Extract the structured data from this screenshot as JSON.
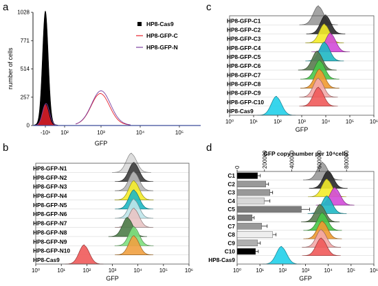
{
  "figure": {
    "panel_a_label": "a",
    "panel_b_label": "b",
    "panel_c_label": "c",
    "panel_d_label": "d"
  },
  "chart_data": [
    {
      "panel": "a",
      "type": "line",
      "xlabel": "GFP",
      "ylabel": "number of cells",
      "x_ticks": [
        "-10¹",
        "10²",
        "10³",
        "10⁴",
        "10⁵"
      ],
      "y_ticks": [
        "0",
        "257",
        "514",
        "771",
        "1028"
      ],
      "ylim": [
        0,
        1028
      ],
      "legend": [
        "HP8-Cas9",
        "HP8-GFP-C",
        "HP8-GFP-N"
      ],
      "legend_position": "top-right",
      "series": [
        {
          "name": "HP8-Cas9",
          "color": "#000000",
          "peak_x": "-10¹",
          "peak_count": 1028
        },
        {
          "name": "HP8-GFP-C",
          "color": "#e8202a",
          "peaks": [
            {
              "at": "-10¹",
              "count": 190
            },
            {
              "at": "10³",
              "count": 260
            }
          ]
        },
        {
          "name": "HP8-GFP-N",
          "color": "#7a3fa0",
          "peaks": [
            {
              "at": "-10¹",
              "count": 200
            },
            {
              "at": "10³",
              "count": 285
            }
          ]
        }
      ]
    },
    {
      "panel": "b",
      "type": "area",
      "xlabel": "GFP",
      "x_ticks": [
        "10⁰",
        "10¹",
        "10²",
        "10³",
        "10⁴",
        "10⁵",
        "10⁶"
      ],
      "xlim_log10": [
        0,
        6
      ],
      "series": [
        {
          "name": "HP8-GFP-N1",
          "color": "#d8d8d8",
          "peak_log10": 3.75
        },
        {
          "name": "HP8-GFP-N2",
          "color": "#3c3c3c",
          "peak_log10": 3.85
        },
        {
          "name": "HP8-GFP-N3",
          "color": "#b8b8b8",
          "peak_log10": 3.85
        },
        {
          "name": "HP8-GFP-N4",
          "color": "#f4ec2a",
          "peak_log10": 3.85
        },
        {
          "name": "HP8-GFP-N5",
          "color": "#1fb8c4",
          "peak_log10": 3.85
        },
        {
          "name": "HP8-GFP-N6",
          "color": "#bfe5ea",
          "peak_log10": 3.85
        },
        {
          "name": "HP8-GFP-N7",
          "color": "#e8c4c4",
          "peak_log10": 3.85
        },
        {
          "name": "HP8-GFP-N8",
          "color": "#4e7d4a",
          "peak_log10": 3.6
        },
        {
          "name": "HP8-GFP-N9",
          "color": "#7ee07e",
          "peak_log10": 3.85
        },
        {
          "name": "HP8-GFP-N10",
          "color": "#f0a040",
          "peak_log10": 3.85
        },
        {
          "name": "HP8-Cas9",
          "color": "#f05a5a",
          "peak_log10": 1.9
        }
      ]
    },
    {
      "panel": "c",
      "type": "area",
      "xlabel": "GFP",
      "x_ticks": [
        "10⁰",
        "10¹",
        "10²",
        "10³",
        "10⁴",
        "10⁵",
        "10⁶"
      ],
      "xlim_log10": [
        0,
        6
      ],
      "series": [
        {
          "name": "HP8-GFP-C1",
          "color": "#9a9a9a",
          "peak_log10": 3.7
        },
        {
          "name": "HP8-GFP-C2",
          "color": "#2a2a2a",
          "peak_log10": 4.0
        },
        {
          "name": "HP8-GFP-C3",
          "color": "#f4ec2a",
          "peak_log10": 3.95
        },
        {
          "name": "HP8-GFP-C4",
          "color": "#d24ad8",
          "peak_log10": 4.2
        },
        {
          "name": "HP8-GFP-C5",
          "color": "#1fb8c4",
          "peak_log10": 3.95
        },
        {
          "name": "HP8-GFP-C6",
          "color": "#5a7a50",
          "peak_log10": 3.65
        },
        {
          "name": "HP8-GFP-C7",
          "color": "#48c848",
          "peak_log10": 3.75
        },
        {
          "name": "HP8-GFP-C8",
          "color": "#f09a30",
          "peak_log10": 3.75
        },
        {
          "name": "HP8-GFP-C9",
          "color": "#f4a9a9",
          "peak_log10": 3.7
        },
        {
          "name": "HP8-GFP-C10",
          "color": "#f05a5a",
          "peak_log10": 3.7
        },
        {
          "name": "HP8-Cas9",
          "color": "#22d0ea",
          "peak_log10": 1.95
        }
      ]
    },
    {
      "panel": "d",
      "type": "bar",
      "title": "GFP copy number per 10⁴cells",
      "xlabel": "GFP",
      "x_ticks": [
        "10⁰",
        "10¹",
        "10²",
        "10³",
        "10⁴",
        "10⁵",
        "10⁶"
      ],
      "xlim_log10": [
        0,
        6
      ],
      "bar_axis_ticks": [
        "0",
        "200000",
        "400000",
        "600000",
        "800000"
      ],
      "bar_axis_max": 1000000,
      "categories": [
        "C1",
        "C2",
        "C3",
        "C4",
        "C5",
        "C6",
        "C7",
        "C8",
        "C9",
        "C10",
        "HP8-Cas9"
      ],
      "bar_values": [
        150000,
        210000,
        240000,
        200000,
        470000,
        110000,
        180000,
        260000,
        150000,
        135000,
        null
      ],
      "bar_errors": [
        20000,
        20000,
        20000,
        40000,
        60000,
        15000,
        40000,
        25000,
        20000,
        20000,
        null
      ],
      "bar_colors": [
        "#000000",
        "#999999",
        "#999999",
        "#d8d8d8",
        "#7c7c7c",
        "#7c7c7c",
        "#999999",
        "#eeeeee",
        "#b0b0b0",
        "#000000",
        null
      ],
      "hist_series": [
        {
          "name": "C1",
          "color": "#9a9a9a",
          "peak_log10": 3.75
        },
        {
          "name": "C2",
          "color": "#2a2a2a",
          "peak_log10": 4.0
        },
        {
          "name": "C3",
          "color": "#f4ec2a",
          "peak_log10": 3.95
        },
        {
          "name": "C4",
          "color": "#d24ad8",
          "peak_log10": 4.3
        },
        {
          "name": "C5",
          "color": "#1fb8c4",
          "peak_log10": 3.95
        },
        {
          "name": "C6",
          "color": "#5a7a50",
          "peak_log10": 3.65
        },
        {
          "name": "C7",
          "color": "#48c848",
          "peak_log10": 3.75
        },
        {
          "name": "C8",
          "color": "#f09a30",
          "peak_log10": 3.75
        },
        {
          "name": "C9",
          "color": "#f4a9a9",
          "peak_log10": 3.7
        },
        {
          "name": "C10",
          "color": "#f05a5a",
          "peak_log10": 3.7
        },
        {
          "name": "HP8-Cas9",
          "color": "#22d0ea",
          "peak_log10": 1.95
        }
      ]
    }
  ]
}
